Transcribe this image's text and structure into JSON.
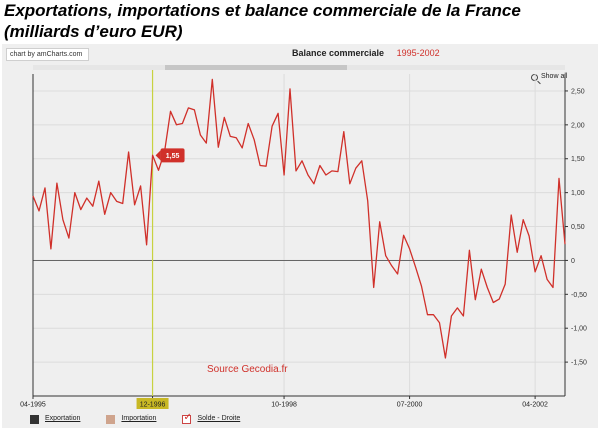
{
  "page": {
    "title": "Exportations, importations et balance commerciale de la France (milliards d’euro EUR)"
  },
  "chart_header": {
    "credit": "chart by amCharts.com",
    "title": "Balance commerciale",
    "subtitle": "1995-2002",
    "show_all": "Show all",
    "source": "Source Gecodia.fr"
  },
  "legend": [
    {
      "label": "Exportation",
      "color": "#333333",
      "checked": false
    },
    {
      "label": "Importation",
      "color": "#cfa48d",
      "checked": false
    },
    {
      "label": "Solde - Droite",
      "color": "#d0302a",
      "checked": true
    }
  ],
  "colors": {
    "line": "#d0302a",
    "cursor": "#c8d240",
    "cursor_label_bg": "#c8b824",
    "axis": "#333333",
    "balloon_bg": "#d0302a"
  },
  "cursor": {
    "date_label": "12-1996",
    "value_label": "1,55",
    "index": 20
  },
  "chart_data": {
    "type": "line",
    "title": "Balance commerciale",
    "subtitle": "1995-2002",
    "x_start": "04-1995",
    "x_tick_labels": [
      {
        "label": "04-1995",
        "index": 0
      },
      {
        "label": "12-1996",
        "index": 20
      },
      {
        "label": "10-1998",
        "index": 42
      },
      {
        "label": "07-2000",
        "index": 63
      },
      {
        "label": "04-2002",
        "index": 84
      }
    ],
    "y_axis_side": "right",
    "ylim": [
      -2.0,
      2.75
    ],
    "y_ticks": [
      2.5,
      2.0,
      1.5,
      1.0,
      0.5,
      0,
      -0.5,
      -1.0,
      -1.5
    ],
    "y_tick_labels": [
      "2,50",
      "2,00",
      "1,50",
      "1,00",
      "0,50",
      "0",
      "-0,50",
      "-1,00",
      "-1,50"
    ],
    "grid": true,
    "legend_position": "bottom-left",
    "series": [
      {
        "name": "Solde - Droite",
        "values": [
          0.95,
          0.73,
          1.07,
          0.17,
          1.14,
          0.6,
          0.33,
          1.0,
          0.75,
          0.92,
          0.8,
          1.17,
          0.68,
          1.0,
          0.87,
          0.84,
          1.6,
          0.82,
          1.1,
          0.23,
          1.55,
          1.33,
          1.6,
          2.2,
          2.0,
          2.02,
          2.25,
          2.22,
          1.85,
          1.73,
          2.67,
          1.67,
          2.11,
          1.83,
          1.81,
          1.66,
          2.02,
          1.78,
          1.4,
          1.39,
          1.98,
          2.17,
          1.26,
          2.53,
          1.32,
          1.47,
          1.26,
          1.13,
          1.4,
          1.26,
          1.32,
          1.31,
          1.9,
          1.13,
          1.36,
          1.47,
          0.88,
          -0.4,
          0.57,
          0.07,
          -0.08,
          -0.2,
          0.37,
          0.17,
          -0.1,
          -0.38,
          -0.8,
          -0.8,
          -0.92,
          -1.44,
          -0.82,
          -0.7,
          -0.82,
          0.15,
          -0.58,
          -0.13,
          -0.4,
          -0.62,
          -0.57,
          -0.35,
          0.67,
          0.12,
          0.6,
          0.36,
          -0.17,
          0.07,
          -0.28,
          -0.4,
          1.21,
          0.24
        ]
      }
    ]
  }
}
